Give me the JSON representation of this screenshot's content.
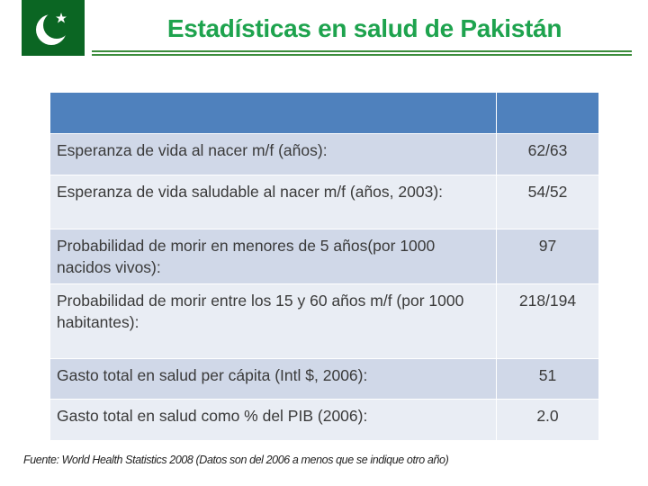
{
  "title": "Estadísticas en salud de Pakistán",
  "table": {
    "header": [
      "",
      ""
    ],
    "rows": [
      {
        "label": "Esperanza de vida al nacer m/f (años):",
        "value": "62/63"
      },
      {
        "label": "Esperanza de vida saludable al nacer m/f (años, 2003):",
        "value": "54/52"
      },
      {
        "label": "Probabilidad de morir en menores de 5 años(por 1000 nacidos vivos):",
        "value": "97"
      },
      {
        "label": "Probabilidad de morir entre los 15 y 60 años m/f (por 1000 habitantes):",
        "value": "218/194"
      },
      {
        "label": "Gasto total en salud per cápita (Intl $, 2006):",
        "value": "51"
      },
      {
        "label": "Gasto total en salud como % del PIB (2006):",
        "value": "2.0"
      }
    ]
  },
  "footnote": "Fuente: World Health Statistics 2008 (Datos son del 2006 a menos que se indique otro año)",
  "colors": {
    "title": "#1ea34e",
    "header": "#4f81bd",
    "row_dark": "#d0d8e8",
    "row_light": "#e9edf4",
    "flag": "#0b6623"
  }
}
